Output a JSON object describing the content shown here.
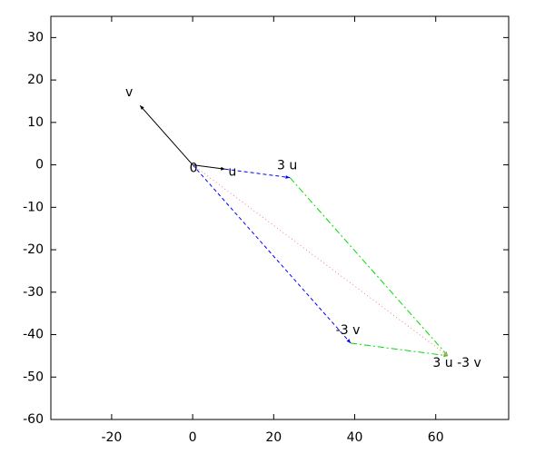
{
  "chart_data": {
    "type": "vector",
    "points": [
      {
        "label": "0",
        "x": 0,
        "y": 0
      },
      {
        "label": "u",
        "x": 8,
        "y": -1
      },
      {
        "label": "v",
        "x": -13,
        "y": 14
      },
      {
        "label": "3 u",
        "x": 24,
        "y": -3
      },
      {
        "label": "-3 v",
        "x": 39,
        "y": -42
      },
      {
        "label": "3 u -3 v",
        "x": 63,
        "y": -45
      }
    ],
    "segments": [
      {
        "from": 0,
        "to": 1,
        "color": "#000000",
        "style": "solid"
      },
      {
        "from": 0,
        "to": 2,
        "color": "#000000",
        "style": "solid"
      },
      {
        "from": 1,
        "to": 3,
        "color": "#0000ff",
        "style": "dashed"
      },
      {
        "from": 0,
        "to": 4,
        "color": "#0000ff",
        "style": "dashed"
      },
      {
        "from": 3,
        "to": 5,
        "color": "#00dd00",
        "style": "dashdot"
      },
      {
        "from": 4,
        "to": 5,
        "color": "#00dd00",
        "style": "dashdot"
      },
      {
        "from": 0,
        "to": 5,
        "color": "#ff8080",
        "style": "dotted"
      }
    ],
    "xlim": [
      -35,
      78
    ],
    "ylim": [
      -60,
      35
    ],
    "xticks": [
      -20,
      0,
      20,
      40,
      60
    ],
    "yticks": [
      -60,
      -50,
      -40,
      -30,
      -20,
      -10,
      0,
      10,
      20,
      30
    ]
  }
}
